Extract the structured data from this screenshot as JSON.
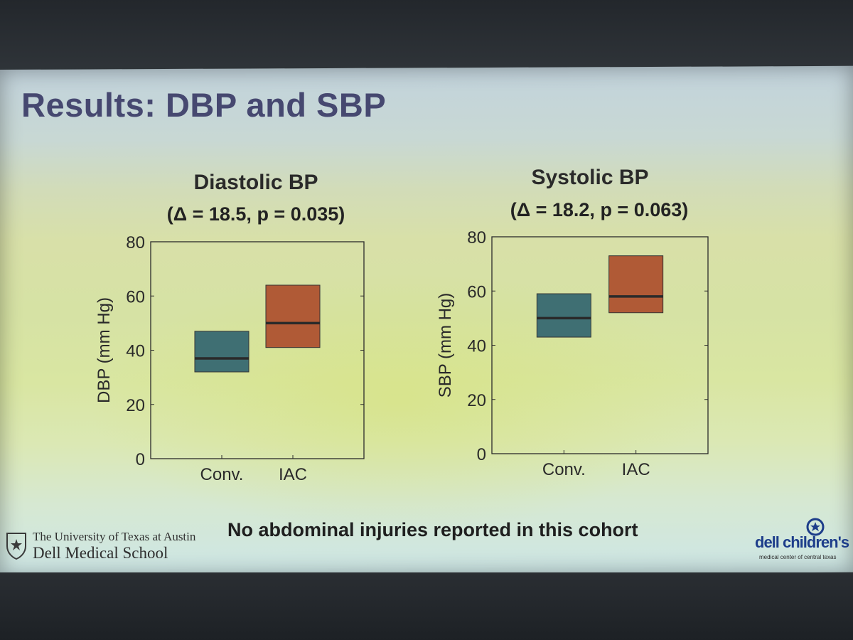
{
  "slide": {
    "title": "Results: DBP and SBP",
    "footer": "No abdominal injuries reported in this cohort"
  },
  "logos": {
    "ut_line1": "The University of Texas at Austin",
    "ut_line2": "Dell Medical School",
    "dell_name": "dell children's",
    "dell_sub": "medical center of central texas"
  },
  "colors": {
    "conv": "#3f6f73",
    "iac": "#b05a36",
    "median": "#2a2a2a",
    "title": "#464870"
  },
  "chart_data": [
    {
      "type": "box",
      "title": "Diastolic BP",
      "subtitle": "(Δ = 18.5, p = 0.035)",
      "ylabel": "DBP (mm Hg)",
      "xlabel": "",
      "ylim": [
        0,
        80
      ],
      "yticks": [
        "0",
        "20",
        "40",
        "60",
        "80"
      ],
      "categories": [
        "Conv.",
        "IAC"
      ],
      "boxes": [
        {
          "category": "Conv.",
          "q1": 32,
          "median": 37,
          "q3": 47
        },
        {
          "category": "IAC",
          "q1": 41,
          "median": 50,
          "q3": 64
        }
      ],
      "grid": false
    },
    {
      "type": "box",
      "title": "Systolic BP",
      "subtitle": "(Δ = 18.2, p = 0.063)",
      "ylabel": "SBP (mm Hg)",
      "xlabel": "",
      "ylim": [
        0,
        80
      ],
      "yticks": [
        "0",
        "20",
        "40",
        "60",
        "80"
      ],
      "categories": [
        "Conv.",
        "IAC"
      ],
      "boxes": [
        {
          "category": "Conv.",
          "q1": 43,
          "median": 50,
          "q3": 59
        },
        {
          "category": "IAC",
          "q1": 52,
          "median": 58,
          "q3": 73
        }
      ],
      "grid": false
    }
  ]
}
